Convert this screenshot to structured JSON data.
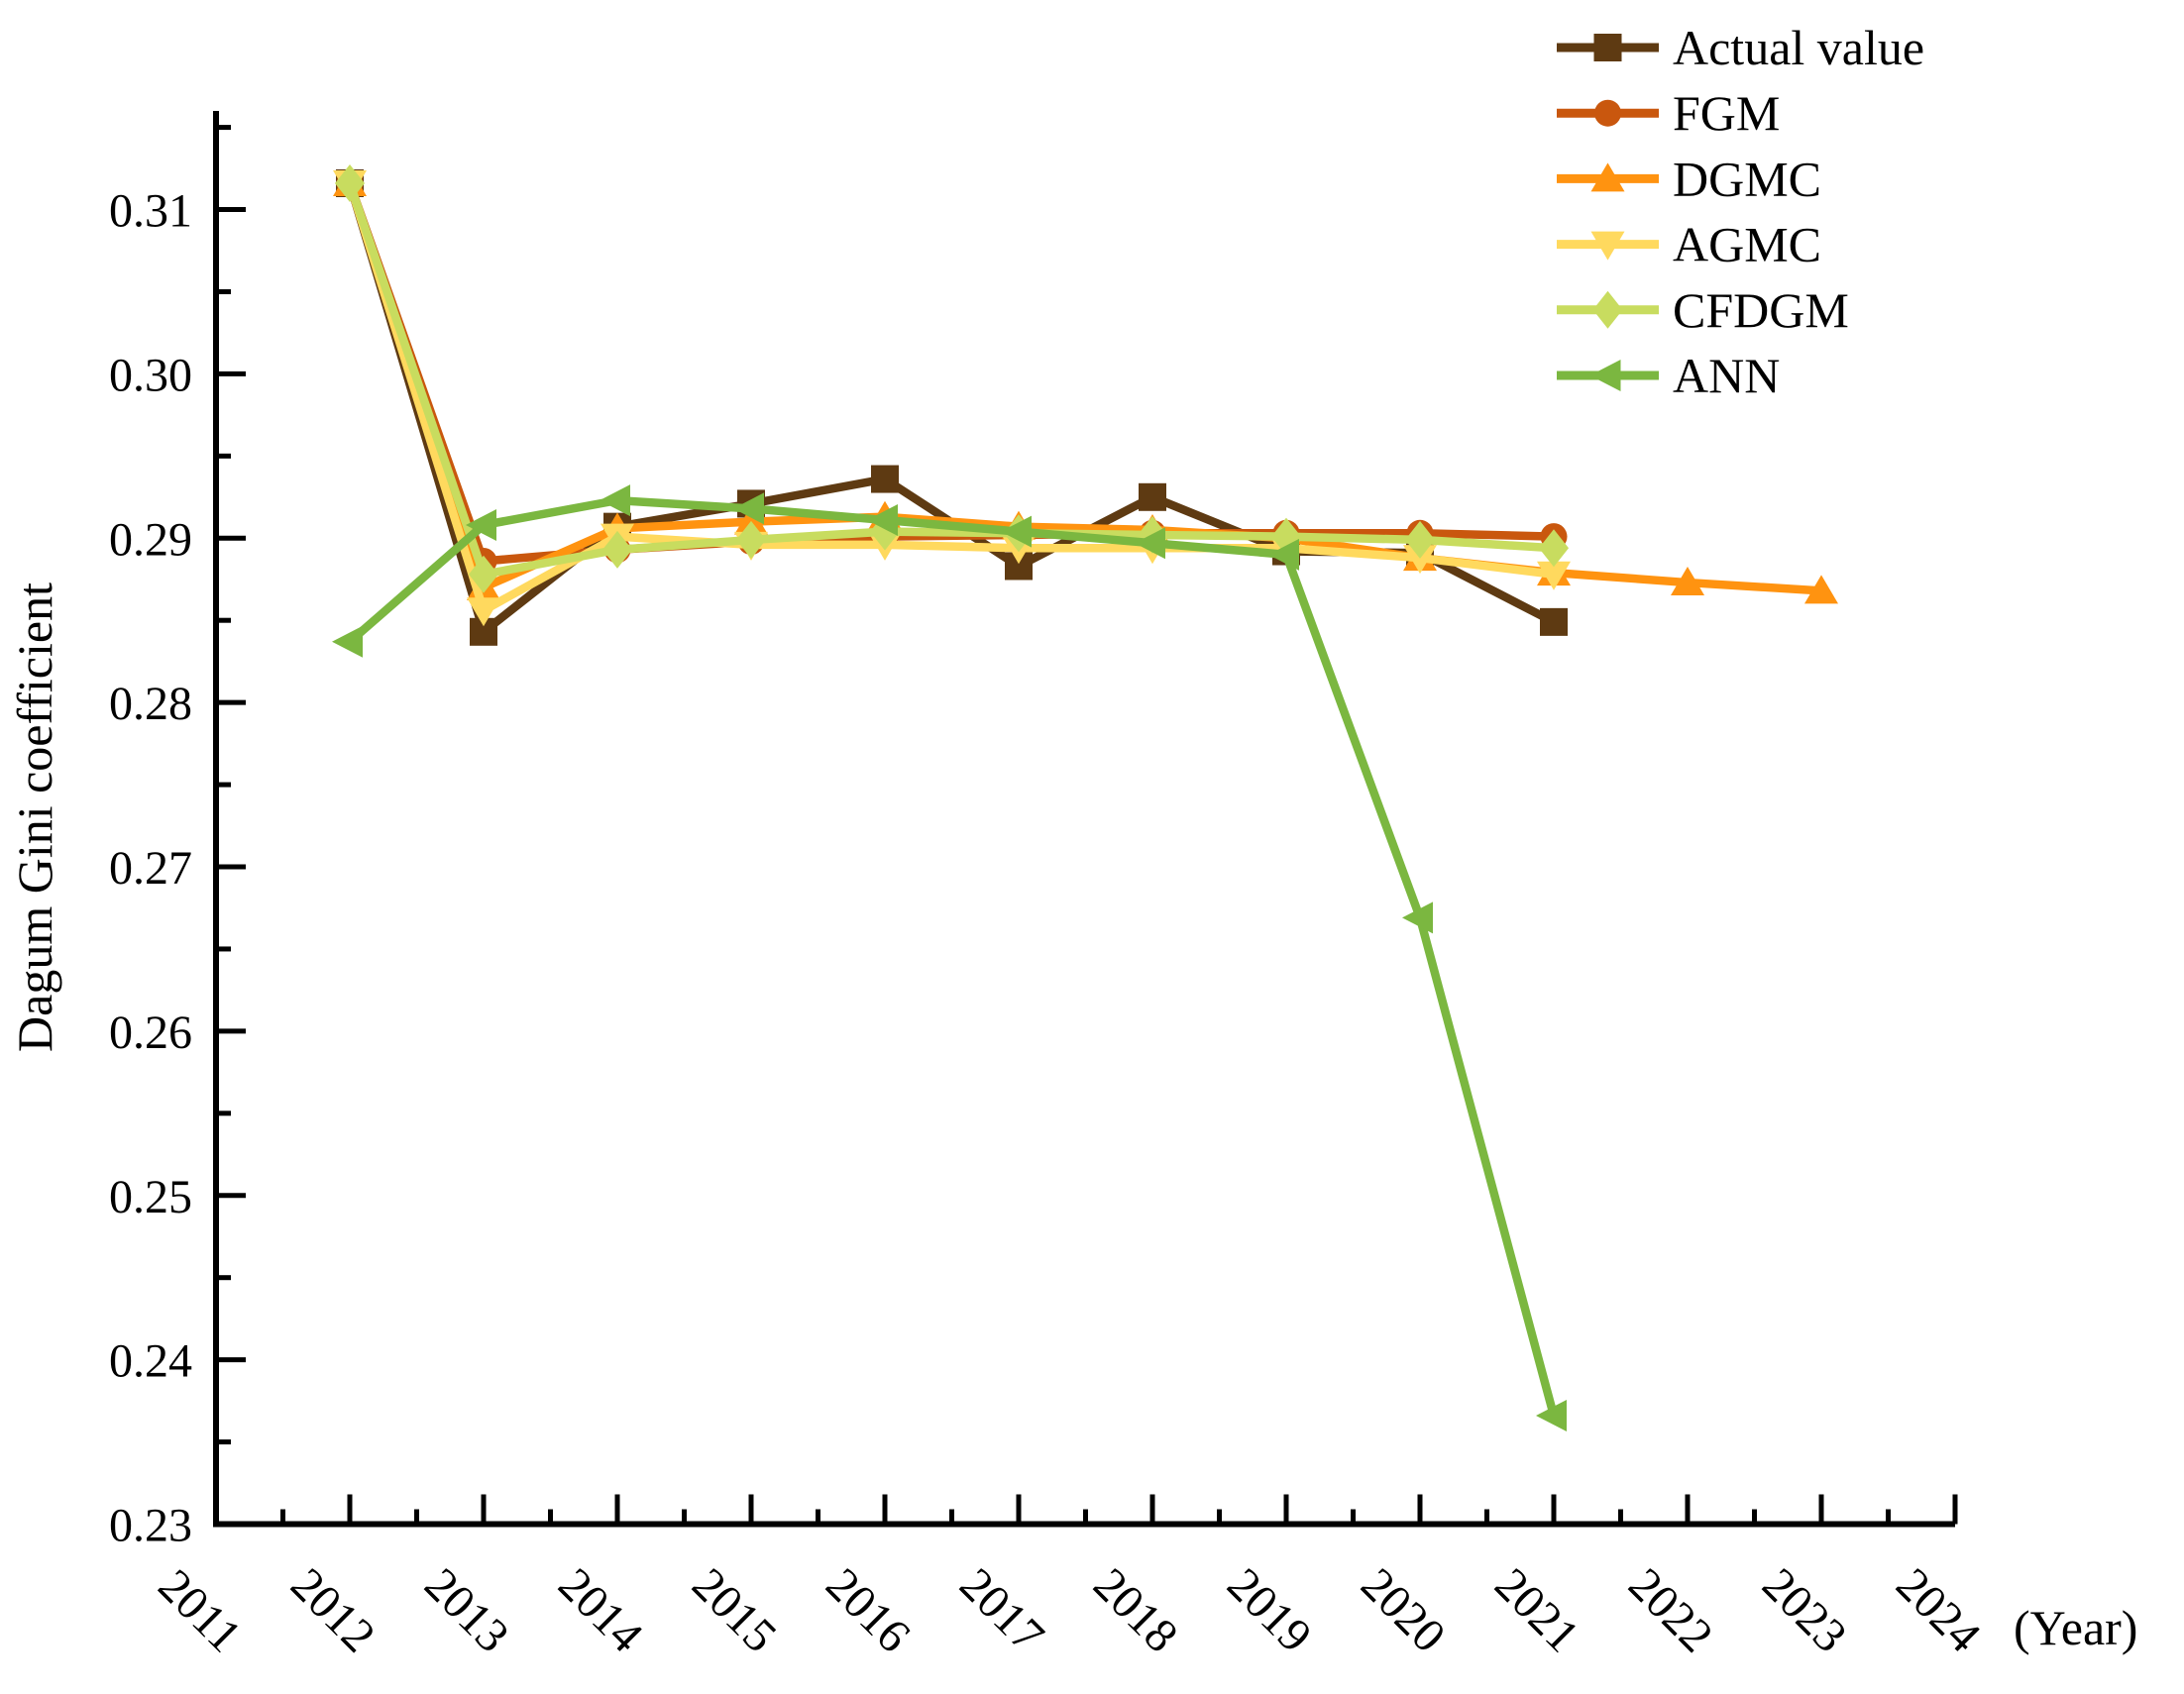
{
  "figure": {
    "background": "#ffffff",
    "axis_color": "#000000"
  },
  "chart_data": {
    "type": "line",
    "title": "",
    "ylabel": "Dagum Gini coefficient",
    "x_unit_label": "(Year)",
    "grid": false,
    "legend_position": "top-right",
    "xlim": [
      2011,
      2024
    ],
    "ylim": [
      0.23,
      0.316
    ],
    "x_ticks": [
      2011,
      2012,
      2013,
      2014,
      2015,
      2016,
      2017,
      2018,
      2019,
      2020,
      2021,
      2022,
      2023,
      2024
    ],
    "x_minor_step": 0.5,
    "y_major_ticks": [
      0.23,
      0.24,
      0.25,
      0.26,
      0.27,
      0.28,
      0.29,
      0.3,
      0.31
    ],
    "y_minor_step": 0.005,
    "y_tick_decimals": 2,
    "series": [
      {
        "name": "Actual value",
        "color": "#5E3A12",
        "marker": "square",
        "x": [
          2012,
          2013,
          2014,
          2015,
          2016,
          2017,
          2018,
          2019,
          2020,
          2021
        ],
        "values": [
          0.3116,
          0.2843,
          0.2907,
          0.2921,
          0.2936,
          0.2883,
          0.2925,
          0.2892,
          0.2891,
          0.2849
        ]
      },
      {
        "name": "FGM",
        "color": "#C9570E",
        "marker": "circle",
        "x": [
          2012,
          2013,
          2014,
          2015,
          2016,
          2017,
          2018,
          2019,
          2020,
          2021
        ],
        "values": [
          0.3116,
          0.2886,
          0.2893,
          0.2898,
          0.2901,
          0.2902,
          0.2903,
          0.2903,
          0.2903,
          0.2901
        ]
      },
      {
        "name": "DGMC",
        "color": "#FF9310",
        "marker": "triangle-up",
        "x": [
          2012,
          2013,
          2014,
          2015,
          2016,
          2017,
          2018,
          2019,
          2020,
          2021,
          2022,
          2023
        ],
        "values": [
          0.3116,
          0.287,
          0.2906,
          0.291,
          0.2913,
          0.2907,
          0.2905,
          0.29,
          0.2888,
          0.2879,
          0.2873,
          0.2868
        ]
      },
      {
        "name": "AGMC",
        "color": "#FFD95E",
        "marker": "triangle-down",
        "x": [
          2012,
          2013,
          2014,
          2015,
          2016,
          2017,
          2018,
          2019,
          2020,
          2021
        ],
        "values": [
          0.3116,
          0.2856,
          0.2901,
          0.2896,
          0.2896,
          0.2894,
          0.2894,
          0.2894,
          0.2888,
          0.2878
        ]
      },
      {
        "name": "CFDGM",
        "color": "#C8DC5F",
        "marker": "diamond",
        "x": [
          2012,
          2013,
          2014,
          2015,
          2016,
          2017,
          2018,
          2019,
          2020,
          2021
        ],
        "values": [
          0.3116,
          0.2878,
          0.2893,
          0.2899,
          0.2904,
          0.2903,
          0.2902,
          0.2901,
          0.2899,
          0.2894
        ]
      },
      {
        "name": "ANN",
        "color": "#7BB740",
        "marker": "triangle-left",
        "x": [
          2012,
          2013,
          2014,
          2015,
          2016,
          2017,
          2018,
          2019,
          2020,
          2021
        ],
        "values": [
          0.2837,
          0.2908,
          0.2923,
          0.2918,
          0.2911,
          0.2904,
          0.2897,
          0.289,
          0.2669,
          0.2366
        ]
      }
    ]
  }
}
